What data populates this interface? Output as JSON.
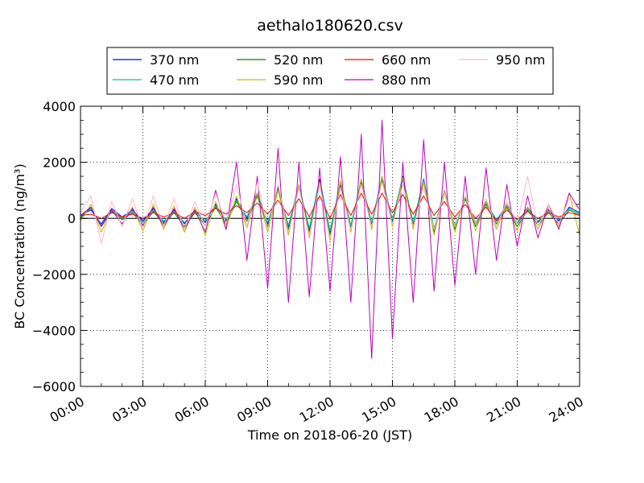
{
  "chart_data": {
    "type": "line",
    "title": "aethalo180620.csv",
    "xlabel": "Time on 2018-06-20 (JST)",
    "ylabel": "BC Concentration (ng/m³)",
    "x_unit": "hours",
    "xlim": [
      0,
      24
    ],
    "ylim": [
      -6000,
      4000
    ],
    "grid": true,
    "legend_position": "top",
    "x_ticks": [
      {
        "value": 0,
        "label": "00:00"
      },
      {
        "value": 3,
        "label": "03:00"
      },
      {
        "value": 6,
        "label": "06:00"
      },
      {
        "value": 9,
        "label": "09:00"
      },
      {
        "value": 12,
        "label": "12:00"
      },
      {
        "value": 15,
        "label": "15:00"
      },
      {
        "value": 18,
        "label": "18:00"
      },
      {
        "value": 21,
        "label": "21:00"
      },
      {
        "value": 24,
        "label": "24:00"
      }
    ],
    "y_ticks": [
      {
        "value": 4000,
        "label": "4000"
      },
      {
        "value": 2000,
        "label": "2000"
      },
      {
        "value": 0,
        "label": "0"
      },
      {
        "value": -2000,
        "label": "−2000"
      },
      {
        "value": -4000,
        "label": "−4000"
      },
      {
        "value": -6000,
        "label": "−6000"
      }
    ],
    "x": [
      0.0,
      0.5,
      1.0,
      1.5,
      2.0,
      2.5,
      3.0,
      3.5,
      4.0,
      4.5,
      5.0,
      5.5,
      6.0,
      6.5,
      7.0,
      7.5,
      8.0,
      8.5,
      9.0,
      9.5,
      10.0,
      10.5,
      11.0,
      11.5,
      12.0,
      12.5,
      13.0,
      13.5,
      14.0,
      14.5,
      15.0,
      15.5,
      16.0,
      16.5,
      17.0,
      17.5,
      18.0,
      18.5,
      19.0,
      19.5,
      20.0,
      20.5,
      21.0,
      21.5,
      22.0,
      22.5,
      23.0,
      23.5,
      24.0
    ],
    "series": [
      {
        "name": "370 nm",
        "color": "#0000ff",
        "values": [
          100,
          300,
          -200,
          350,
          50,
          300,
          -100,
          350,
          -150,
          300,
          -200,
          300,
          -150,
          500,
          -100,
          700,
          0,
          900,
          -200,
          1100,
          -300,
          1200,
          -400,
          1400,
          -500,
          1300,
          -300,
          1400,
          -200,
          1500,
          -100,
          1500,
          -200,
          1400,
          -400,
          1000,
          -300,
          800,
          -200,
          600,
          -100,
          500,
          -200,
          400,
          -150,
          300,
          -100,
          400,
          200
        ]
      },
      {
        "name": "470 nm",
        "color": "#00c0a0",
        "values": [
          50,
          350,
          -250,
          300,
          0,
          250,
          -150,
          300,
          -100,
          250,
          -150,
          250,
          -100,
          450,
          -50,
          650,
          50,
          850,
          -150,
          1000,
          -250,
          1150,
          -350,
          1300,
          -450,
          1250,
          -250,
          1350,
          -150,
          1400,
          -50,
          1450,
          -150,
          1350,
          -350,
          950,
          -250,
          750,
          -150,
          550,
          -50,
          450,
          -150,
          350,
          -100,
          250,
          -50,
          350,
          150
        ]
      },
      {
        "name": "520 nm",
        "color": "#008000",
        "values": [
          0,
          400,
          -300,
          250,
          -50,
          200,
          -250,
          250,
          -200,
          200,
          -300,
          200,
          -250,
          400,
          -200,
          600,
          -100,
          800,
          -300,
          1050,
          -400,
          1100,
          -500,
          1250,
          -600,
          1200,
          -400,
          1300,
          -300,
          1350,
          -200,
          1400,
          -300,
          1300,
          -500,
          900,
          -400,
          700,
          -300,
          500,
          -200,
          400,
          -300,
          300,
          -250,
          200,
          -200,
          300,
          100
        ]
      },
      {
        "name": "590 nm",
        "color": "#bfbf00",
        "values": [
          -100,
          500,
          -500,
          300,
          -200,
          400,
          -450,
          500,
          -400,
          450,
          -500,
          400,
          -600,
          600,
          -400,
          800,
          -350,
          900,
          -500,
          1000,
          -600,
          1200,
          -700,
          1300,
          -800,
          1350,
          -500,
          1400,
          -400,
          1500,
          -300,
          1450,
          -400,
          1300,
          -600,
          1000,
          -500,
          800,
          -450,
          600,
          -400,
          500,
          -450,
          400,
          -400,
          350,
          -300,
          900,
          -600
        ]
      },
      {
        "name": "660 nm",
        "color": "#ff0000",
        "values": [
          100,
          150,
          0,
          200,
          50,
          150,
          0,
          200,
          50,
          200,
          0,
          250,
          100,
          350,
          150,
          450,
          200,
          550,
          150,
          650,
          100,
          700,
          50,
          800,
          0,
          850,
          100,
          900,
          150,
          900,
          200,
          850,
          150,
          800,
          100,
          600,
          50,
          500,
          0,
          400,
          -100,
          300,
          -50,
          250,
          0,
          200,
          50,
          200,
          100
        ]
      },
      {
        "name": "880 nm",
        "color": "#bf00bf",
        "values": [
          100,
          400,
          -300,
          300,
          -200,
          350,
          -250,
          400,
          -300,
          350,
          -400,
          300,
          -500,
          1000,
          -400,
          2000,
          -1500,
          1500,
          -2500,
          2500,
          -3000,
          2000,
          -2800,
          1800,
          -2600,
          2200,
          -3000,
          3000,
          -5000,
          3500,
          -4300,
          2000,
          -3000,
          2800,
          -2600,
          2000,
          -2400,
          1500,
          -2000,
          1800,
          -1500,
          1200,
          -1000,
          800,
          -700,
          500,
          -400,
          900,
          300
        ]
      },
      {
        "name": "950 nm",
        "color": "#ffb6c1",
        "values": [
          200,
          800,
          -900,
          600,
          -300,
          700,
          -400,
          800,
          -300,
          700,
          -400,
          600,
          -300,
          900,
          -200,
          1200,
          -300,
          1300,
          -400,
          1200,
          -500,
          1100,
          -600,
          1200,
          -700,
          1100,
          -400,
          1200,
          -300,
          1300,
          -200,
          1200,
          -300,
          1100,
          -400,
          900,
          -300,
          800,
          -200,
          700,
          -300,
          600,
          -200,
          1500,
          -300,
          500,
          -200,
          700,
          300
        ]
      }
    ]
  }
}
